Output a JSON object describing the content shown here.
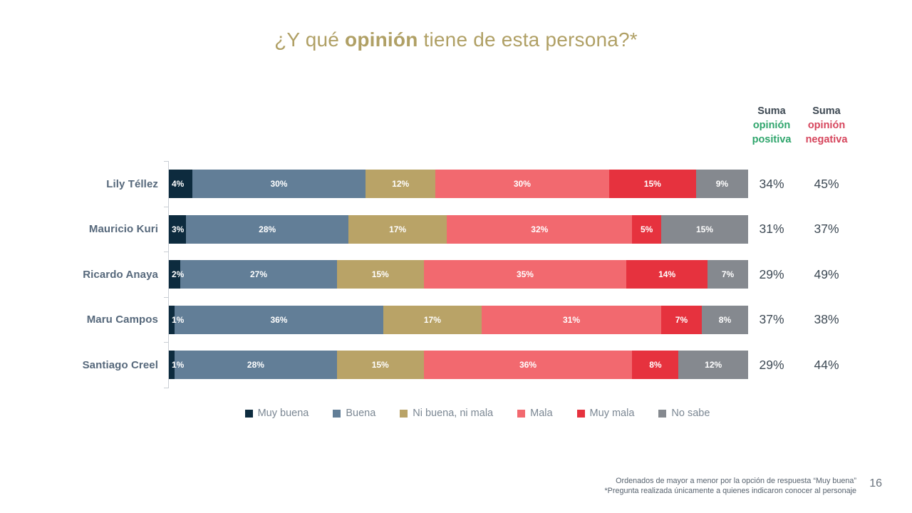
{
  "title": {
    "prefix": "¿Y qué ",
    "highlight": "opinión",
    "suffix": " tiene de esta persona?*"
  },
  "summary_headers": {
    "positive": {
      "line1": "Suma",
      "line2": "opinión",
      "line3": "positiva"
    },
    "negative": {
      "line1": "Suma",
      "line2": "opinión",
      "line3": "negativa"
    }
  },
  "chart_data": {
    "type": "bar",
    "orientation": "horizontal_stacked",
    "title": "¿Y qué opinión tiene de esta persona?*",
    "categories": [
      "Lily Téllez",
      "Mauricio Kuri",
      "Ricardo Anaya",
      "Maru Campos",
      "Santiago Creel"
    ],
    "series": [
      {
        "name": "Muy buena",
        "color": "#0d2b3e",
        "values": [
          4,
          3,
          2,
          1,
          1
        ]
      },
      {
        "name": "Buena",
        "color": "#627e97",
        "values": [
          30,
          28,
          27,
          36,
          28
        ]
      },
      {
        "name": "Ni buena, ni mala",
        "color": "#b9a367",
        "values": [
          12,
          17,
          15,
          17,
          15
        ]
      },
      {
        "name": "Mala",
        "color": "#f2696f",
        "values": [
          30,
          32,
          35,
          31,
          36
        ]
      },
      {
        "name": "Muy mala",
        "color": "#e6323e",
        "values": [
          15,
          5,
          14,
          7,
          8
        ]
      },
      {
        "name": "No sabe",
        "color": "#85898f",
        "values": [
          9,
          15,
          7,
          8,
          12
        ]
      }
    ],
    "suma_positiva": [
      34,
      31,
      29,
      37,
      29
    ],
    "suma_negativa": [
      45,
      37,
      49,
      38,
      44
    ],
    "value_suffix": "%",
    "xlim": [
      0,
      100
    ],
    "grid": false,
    "legend_position": "bottom",
    "colors": {
      "title_gold": "#b0a065",
      "category_label": "#56687b",
      "sum_value": "#3d4954",
      "positive_accent": "#2fa56c",
      "negative_accent": "#d6455c",
      "legend_text": "#7b8793",
      "axis_line": "#c9ced4"
    }
  },
  "footnotes": [
    "Ordenados de mayor a menor por la opción de respuesta “Muy buena”",
    "*Pregunta realizada únicamente a quienes indicaron conocer al personaje"
  ],
  "page_number": "16"
}
